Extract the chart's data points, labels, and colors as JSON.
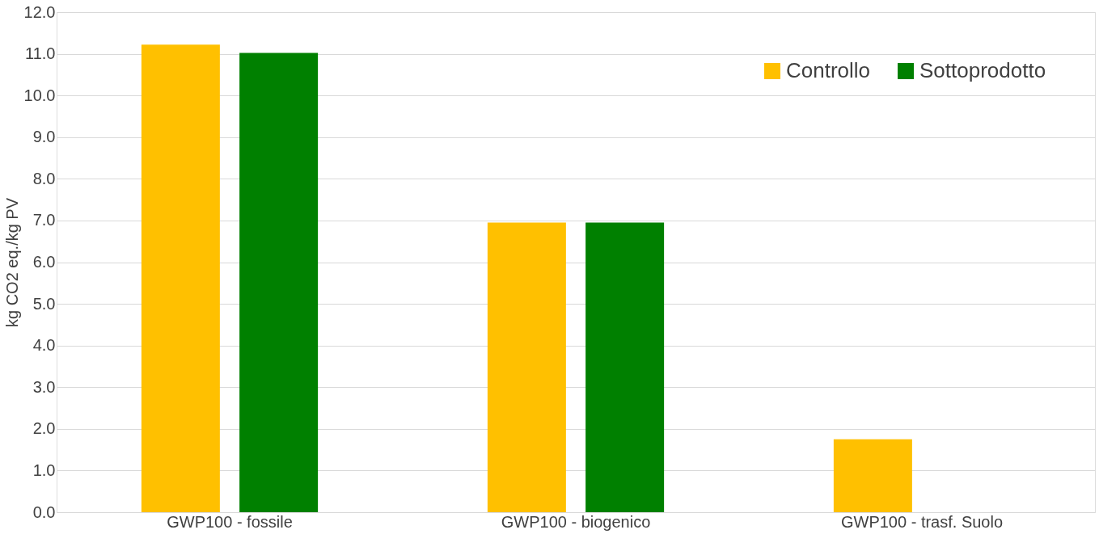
{
  "chart_data": {
    "type": "bar",
    "ylabel": "kg CO2 eq./kg PV",
    "categories": [
      "GWP100 - fossile",
      "GWP100 - biogenico",
      "GWP100 - trasf. Suolo"
    ],
    "series": [
      {
        "name": "Controllo",
        "color": "#ffc000",
        "values": [
          11.22,
          6.95,
          1.75
        ]
      },
      {
        "name": "Sottoprodotto",
        "color": "#008000",
        "values": [
          11.02,
          6.95,
          0
        ]
      }
    ],
    "ylim": [
      0,
      12
    ],
    "yticks": [
      {
        "value": 0,
        "label": "0.0"
      },
      {
        "value": 1,
        "label": "1.0"
      },
      {
        "value": 2,
        "label": "2.0"
      },
      {
        "value": 3,
        "label": "3.0"
      },
      {
        "value": 4,
        "label": "4.0"
      },
      {
        "value": 5,
        "label": "5.0"
      },
      {
        "value": 6,
        "label": "6.0"
      },
      {
        "value": 7,
        "label": "7.0"
      },
      {
        "value": 8,
        "label": "8.0"
      },
      {
        "value": 9,
        "label": "9.0"
      },
      {
        "value": 10,
        "label": "10.0"
      },
      {
        "value": 11,
        "label": "11.0"
      },
      {
        "value": 12,
        "label": "12.0"
      }
    ],
    "grid": "y",
    "legend": "top right"
  }
}
